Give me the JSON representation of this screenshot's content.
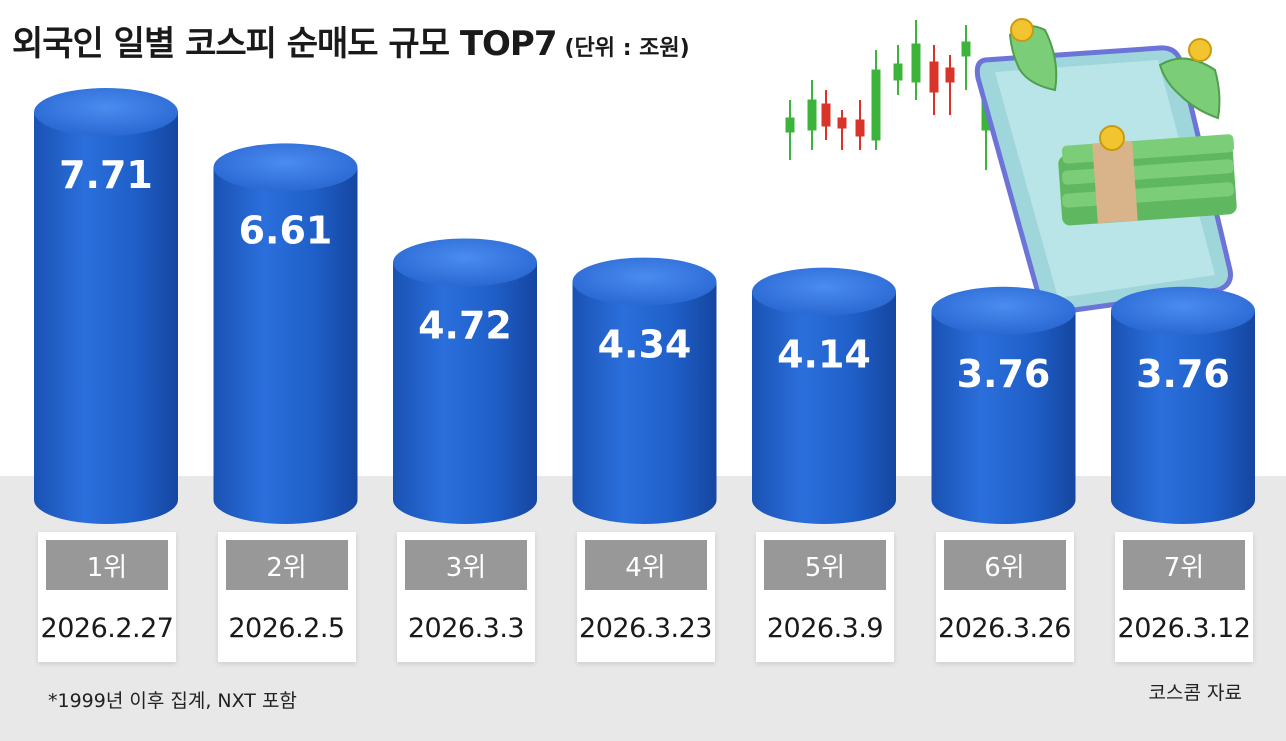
{
  "title": "외국인 일별 코스피 순매도 규모 TOP7",
  "unit_label": "(단위 : 조원)",
  "footnote": "*1999년 이후 집계, NXT 포함",
  "source": "코스콤 자료",
  "colors": {
    "bar": "#1f5fc8",
    "bar_top": "#3b7ee6",
    "label_bg": "#989898",
    "floor": "#e8e8e8"
  },
  "chart_data": {
    "type": "bar",
    "title": "외국인 일별 코스피 순매도 규모 TOP7",
    "unit": "조원",
    "categories": [
      "1위",
      "2위",
      "3위",
      "4위",
      "5위",
      "6위",
      "7위"
    ],
    "dates": [
      "2026.2.27",
      "2026.2.5",
      "2026.3.3",
      "2026.3.23",
      "2026.3.9",
      "2026.3.26",
      "2026.3.12"
    ],
    "values": [
      7.71,
      6.61,
      4.72,
      4.34,
      4.14,
      3.76,
      3.76
    ],
    "value_labels": [
      "7.71",
      "6.61",
      "4.72",
      "4.34",
      "4.14",
      "3.76",
      "3.76"
    ],
    "grid": false,
    "legend": "none"
  }
}
